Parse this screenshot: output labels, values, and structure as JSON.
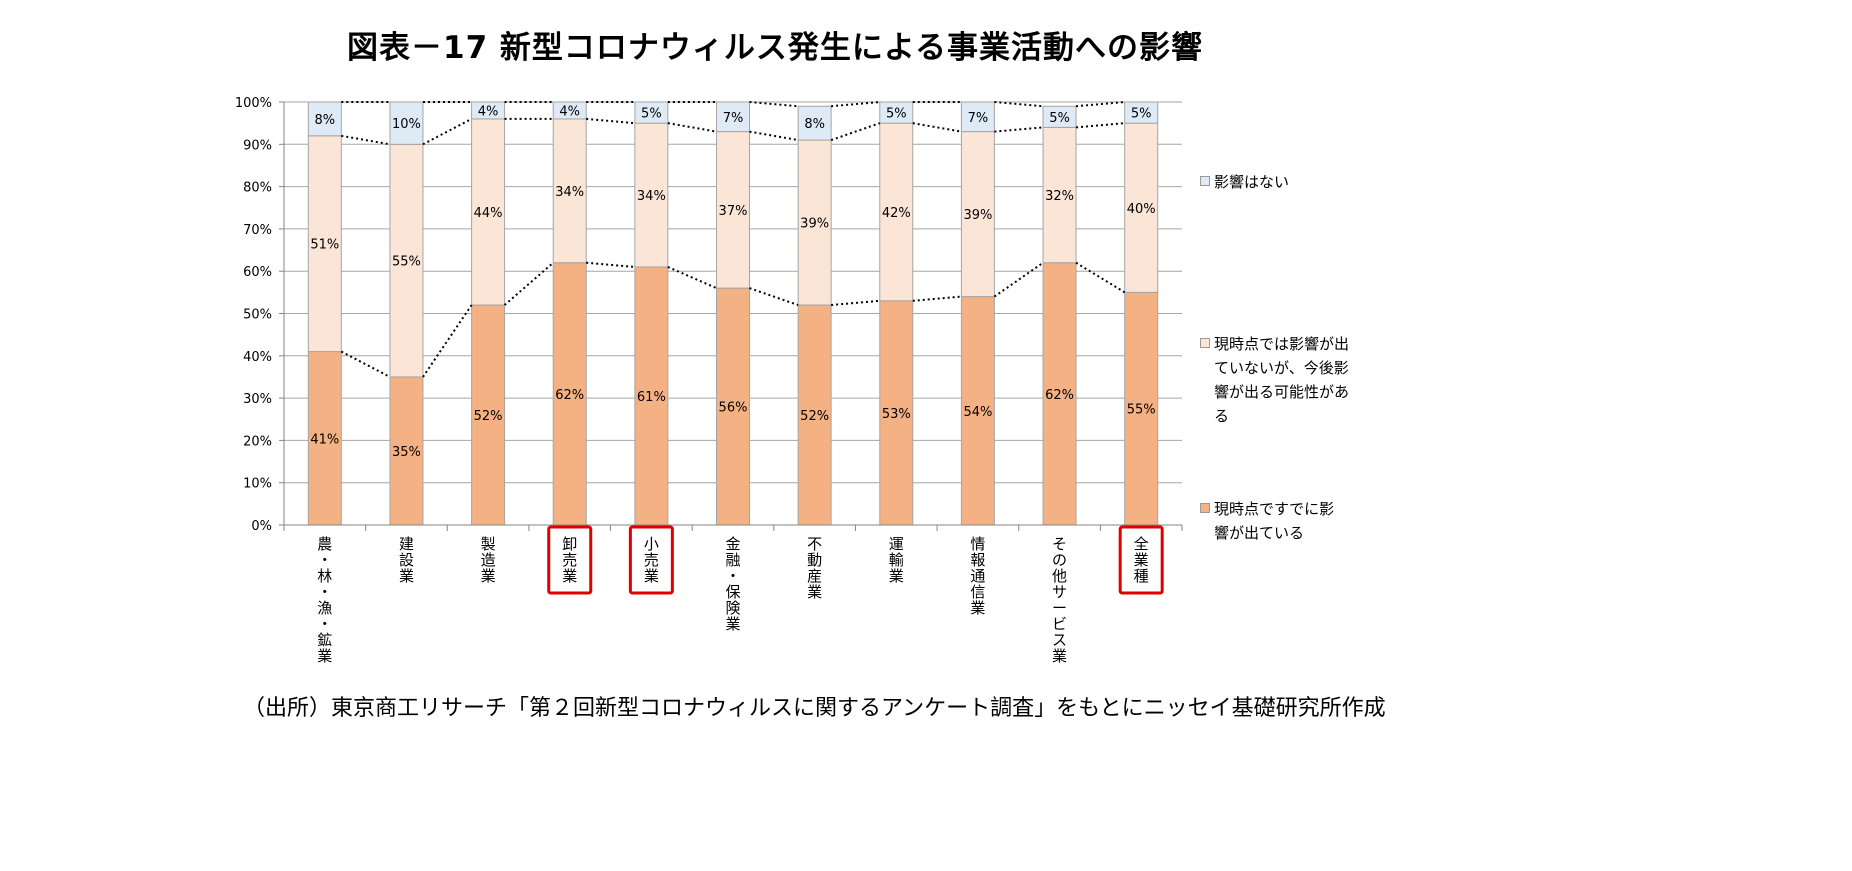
{
  "chart_data": {
    "type": "bar",
    "stacked": "percent",
    "title": "図表－17 新型コロナウィルス発生による事業活動への影響",
    "categories": [
      "農・林・漁・鉱業",
      "建設業",
      "製造業",
      "卸売業",
      "小売業",
      "金融・保険業",
      "不動産業",
      "運輸業",
      "情報通信業",
      "その他サービス業",
      "全業種"
    ],
    "highlighted_categories": [
      "卸売業",
      "小売業",
      "全業種"
    ],
    "series": [
      {
        "name": "現時点ですでに影響が出ている",
        "color": "#F4B183",
        "values": [
          41,
          35,
          52,
          62,
          61,
          56,
          52,
          53,
          54,
          62,
          55
        ]
      },
      {
        "name": "現時点では影響が出ていないが、今後影響が出る可能性がある",
        "color": "#FBE5D6",
        "values": [
          51,
          55,
          44,
          34,
          34,
          37,
          39,
          42,
          39,
          32,
          40
        ]
      },
      {
        "name": "影響はない",
        "color": "#DEEBF7",
        "values": [
          8,
          10,
          4,
          4,
          5,
          7,
          8,
          5,
          7,
          5,
          5
        ]
      }
    ],
    "data_labels": [
      [
        "41%",
        "35%",
        "52%",
        "62%",
        "61%",
        "56%",
        "52%",
        "53%",
        "54%",
        "62%",
        "55%"
      ],
      [
        "51%",
        "55%",
        "44%",
        "34%",
        "34%",
        "37%",
        "39%",
        "42%",
        "39%",
        "32%",
        "40%"
      ],
      [
        "8%",
        "10%",
        "4%",
        "4%",
        "5%",
        "7%",
        "8%",
        "5%",
        "7%",
        "5%",
        "5%"
      ]
    ],
    "y_ticks": [
      "0%",
      "10%",
      "20%",
      "30%",
      "40%",
      "50%",
      "60%",
      "70%",
      "80%",
      "90%",
      "100%"
    ],
    "ylim": [
      0,
      100
    ],
    "grid": true,
    "legend": "right",
    "series_lines": "dotted"
  },
  "source_note": "（出所）東京商工リサーチ「第２回新型コロナウィルスに関するアンケート調査」をもとにニッセイ基礎研究所作成"
}
